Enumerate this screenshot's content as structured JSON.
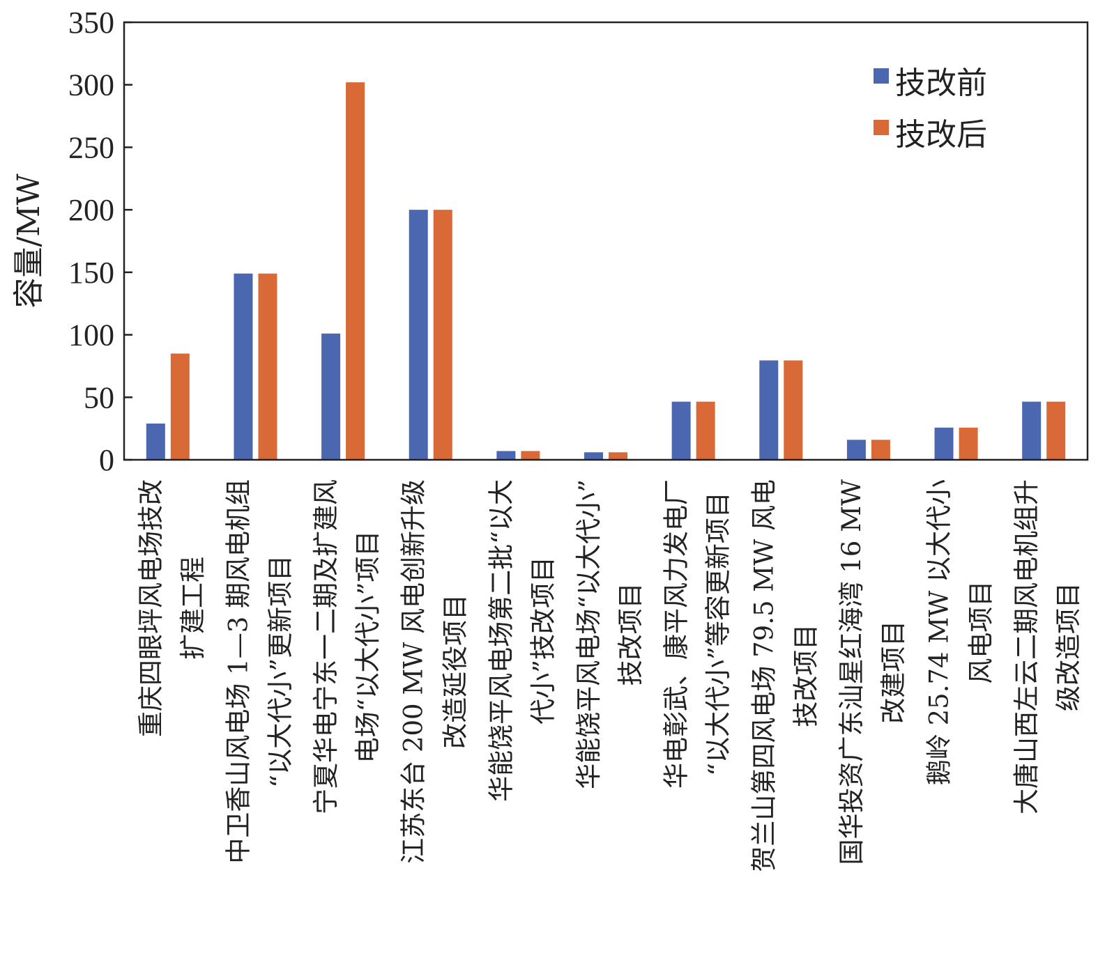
{
  "chart_data": {
    "type": "bar",
    "title": "",
    "xlabel": "",
    "ylabel": "容量/MW",
    "ylim": [
      0,
      350
    ],
    "yticks": [
      0,
      50,
      100,
      150,
      200,
      250,
      300,
      350
    ],
    "grid": false,
    "legend_position": "top-right",
    "categories": [
      "重庆四眼坪风电场技改扩建工程",
      "中卫香山风电场 1—3 期风电机组“以大代小”更新项目",
      "宁夏华电宁东一二期及扩建风电场“以大代小”项目",
      "江苏东台 200 MW 风电创新升级改造延役项目",
      "华能饶平风电场第二批“以大代小”技改项目",
      "华能饶平风电场“以大代小”技改项目",
      "华电彰武、康平风力发电厂“以大代小”等容更新项目",
      "贺兰山第四风电场 79.5 MW 风电技改项目",
      "国华投资广东汕星红海湾 16 MW 改建项目",
      "鹅岭 25.74 MW 以大代小风电项目",
      "大唐山西左云二期风电机组升级改造项目"
    ],
    "category_lines": [
      [
        "重庆四眼坪风电场技改",
        "扩建工程"
      ],
      [
        "中卫香山风电场 1—3 期风电机组",
        "“以大代小”更新项目"
      ],
      [
        "宁夏华电宁东一二期及扩建风",
        "电场“以大代小”项目"
      ],
      [
        "江苏东台 200 MW 风电创新升级",
        "改造延役项目"
      ],
      [
        "华能饶平风电场第二批“以大",
        "代小”技改项目"
      ],
      [
        "华能饶平风电场“以大代小”",
        "技改项目"
      ],
      [
        "华电彰武、康平风力发电厂",
        "“以大代小”等容更新项目"
      ],
      [
        "贺兰山第四风电场 79.5 MW 风电",
        "技改项目"
      ],
      [
        "国华投资广东汕星红海湾 16 MW",
        "改建项目"
      ],
      [
        "鹅岭 25.74 MW 以大代小",
        "风电项目"
      ],
      [
        "大唐山西左云二期风电机组升",
        "级改造项目"
      ]
    ],
    "series": [
      {
        "name": "技改前",
        "color": "#4a67b0",
        "values": [
          29,
          149,
          101,
          200,
          7,
          6,
          46.5,
          79.5,
          16,
          25.74,
          46.5
        ]
      },
      {
        "name": "技改后",
        "color": "#d96a37",
        "values": [
          85,
          149,
          302,
          200,
          7,
          6,
          46.5,
          79.5,
          16,
          25.74,
          46.5
        ]
      }
    ]
  }
}
